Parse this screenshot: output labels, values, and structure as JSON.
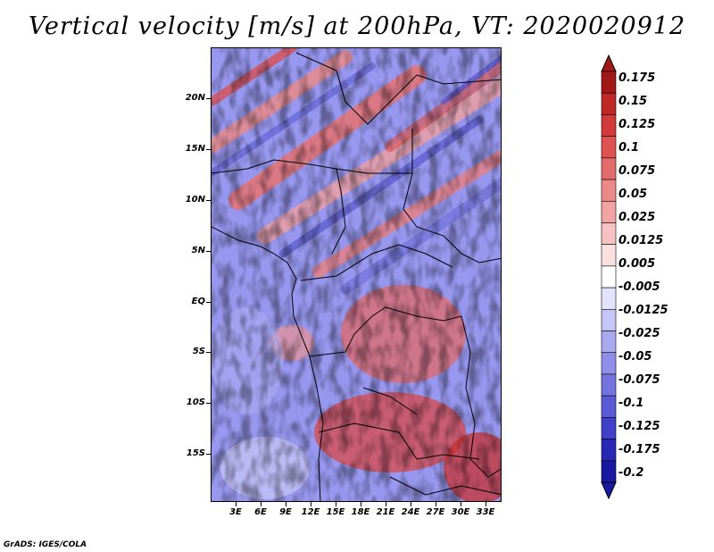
{
  "title": "Vertical velocity [m/s] at 200hPa, VT: 2020020912",
  "footer": "GrADS: IGES/COLA",
  "map": {
    "region": "Central Africa",
    "lon_range": [
      0,
      35
    ],
    "lat_range": [
      -20,
      24
    ],
    "lat_labels": [
      "20N",
      "15N",
      "10N",
      "5N",
      "EQ",
      "5S",
      "10S",
      "15S"
    ],
    "lon_labels": [
      "3E",
      "6E",
      "9E",
      "12E",
      "15E",
      "18E",
      "21E",
      "24E",
      "27E",
      "30E",
      "33E"
    ]
  },
  "colorbar": {
    "labels": [
      "0.175",
      "0.15",
      "0.125",
      "0.1",
      "0.075",
      "0.05",
      "0.025",
      "0.0125",
      "0.005",
      "-0.005",
      "-0.0125",
      "-0.025",
      "-0.05",
      "-0.075",
      "-0.1",
      "-0.125",
      "-0.175",
      "-0.2"
    ],
    "colors": [
      "#a01818",
      "#c02828",
      "#d23a3a",
      "#de5252",
      "#e56b6b",
      "#ec8888",
      "#f2a4a4",
      "#f7c2c2",
      "#fbe0e0",
      "#ffffff",
      "#e2e2fb",
      "#c6c6f6",
      "#a9a9f0",
      "#8f8fe9",
      "#7474e0",
      "#5a5ad6",
      "#4040c8",
      "#2828b4",
      "#1818a0"
    ]
  }
}
